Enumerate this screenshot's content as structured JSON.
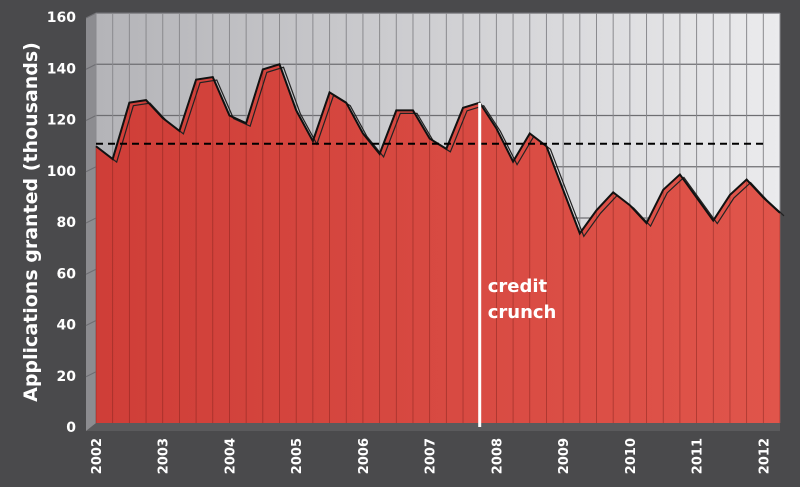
{
  "chart_data": {
    "type": "area",
    "title": "",
    "xlabel": "",
    "ylabel": "Applications granted (thousands)",
    "ylim": [
      0,
      160
    ],
    "yticks": [
      "0",
      "20",
      "40",
      "60",
      "80",
      "100",
      "120",
      "140",
      "160"
    ],
    "xlim": [
      2002,
      2012.25
    ],
    "xticks": [
      "2002",
      "2003",
      "2004",
      "2005",
      "2006",
      "2007",
      "2008",
      "2009",
      "2010",
      "2011",
      "2012"
    ],
    "grid": true,
    "series": [
      {
        "x": [
          2002,
          2002.25,
          2002.5,
          2002.75,
          2003,
          2003.25,
          2003.5,
          2003.75,
          2004,
          2004.25,
          2004.5,
          2004.75,
          2005,
          2005.25,
          2005.5,
          2005.75,
          2006,
          2006.25,
          2006.5,
          2006.75,
          2007,
          2007.25,
          2007.5,
          2007.75,
          2008,
          2008.25,
          2008.5,
          2008.75,
          2009,
          2009.25,
          2009.5,
          2009.75,
          2010,
          2010.25,
          2010.5,
          2010.75,
          2011,
          2011.25,
          2011.5,
          2011.75,
          2012,
          2012.25
        ],
        "values": [
          108,
          103,
          125,
          126,
          119,
          114,
          134,
          135,
          120,
          117,
          138,
          140,
          122,
          110,
          129,
          125,
          113,
          105,
          122,
          122,
          111,
          107,
          123,
          125,
          115,
          102,
          113,
          108,
          91,
          74,
          83,
          90,
          85,
          78,
          91,
          97,
          88,
          79,
          89,
          95,
          88,
          82
        ],
        "color": "#d94a42"
      }
    ],
    "reference_line": {
      "value": 109,
      "style": "dashed",
      "color": "#000000"
    },
    "annotation": {
      "text_lines": [
        "credit",
        "crunch"
      ],
      "x": 2007.75,
      "color": "#ffffff"
    }
  }
}
